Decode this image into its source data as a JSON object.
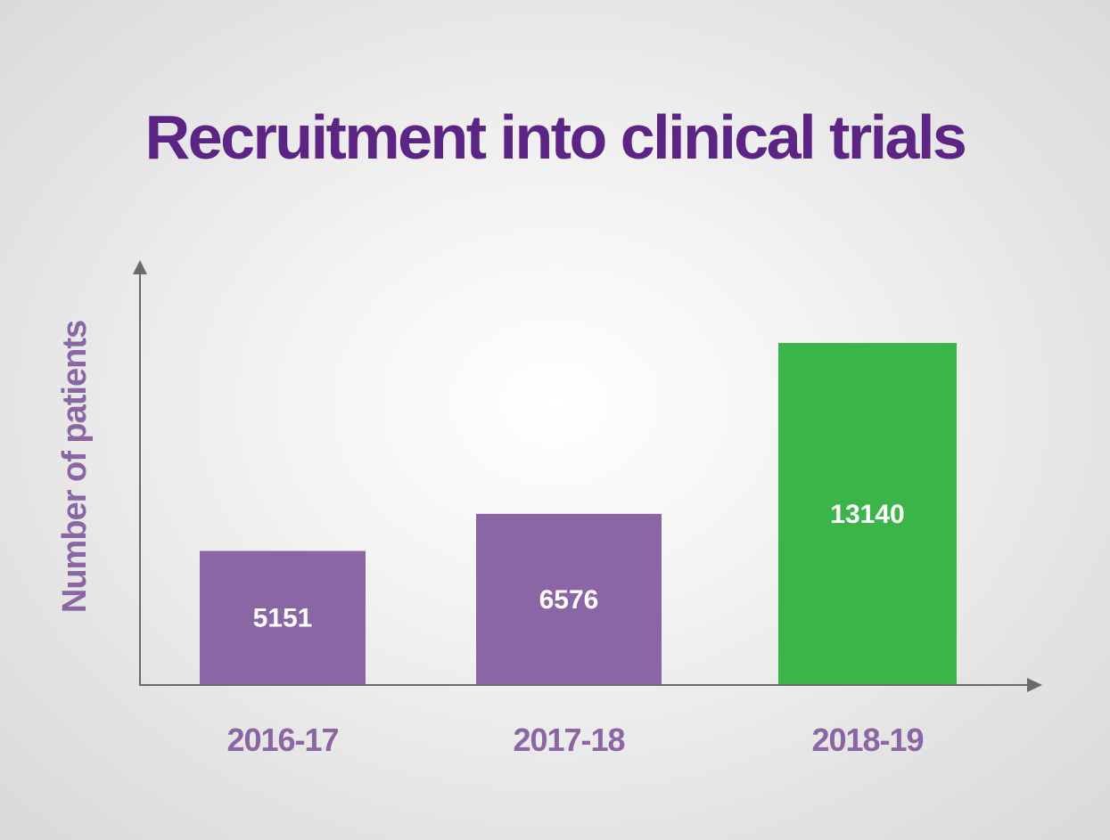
{
  "chart_data": {
    "type": "bar",
    "title": "Recruitment into clinical trials",
    "xlabel": "",
    "ylabel": "Number of patients",
    "categories": [
      "2016-17",
      "2017-18",
      "2018-19"
    ],
    "values": [
      5151,
      6576,
      13140
    ],
    "data_labels": [
      "5151",
      "6576",
      "13140"
    ],
    "bar_colors": [
      "#8b66a4",
      "#8b66a4",
      "#3bb54a"
    ],
    "ylim": [
      0,
      16000
    ],
    "grid": false,
    "legend": "none"
  },
  "colors": {
    "title": "#5b2485",
    "labels": "#8b66a4",
    "axis": "#6b6b6b",
    "bar_default": "#8b66a4",
    "bar_highlight": "#3bb54a",
    "data_label": "#ffffff"
  }
}
